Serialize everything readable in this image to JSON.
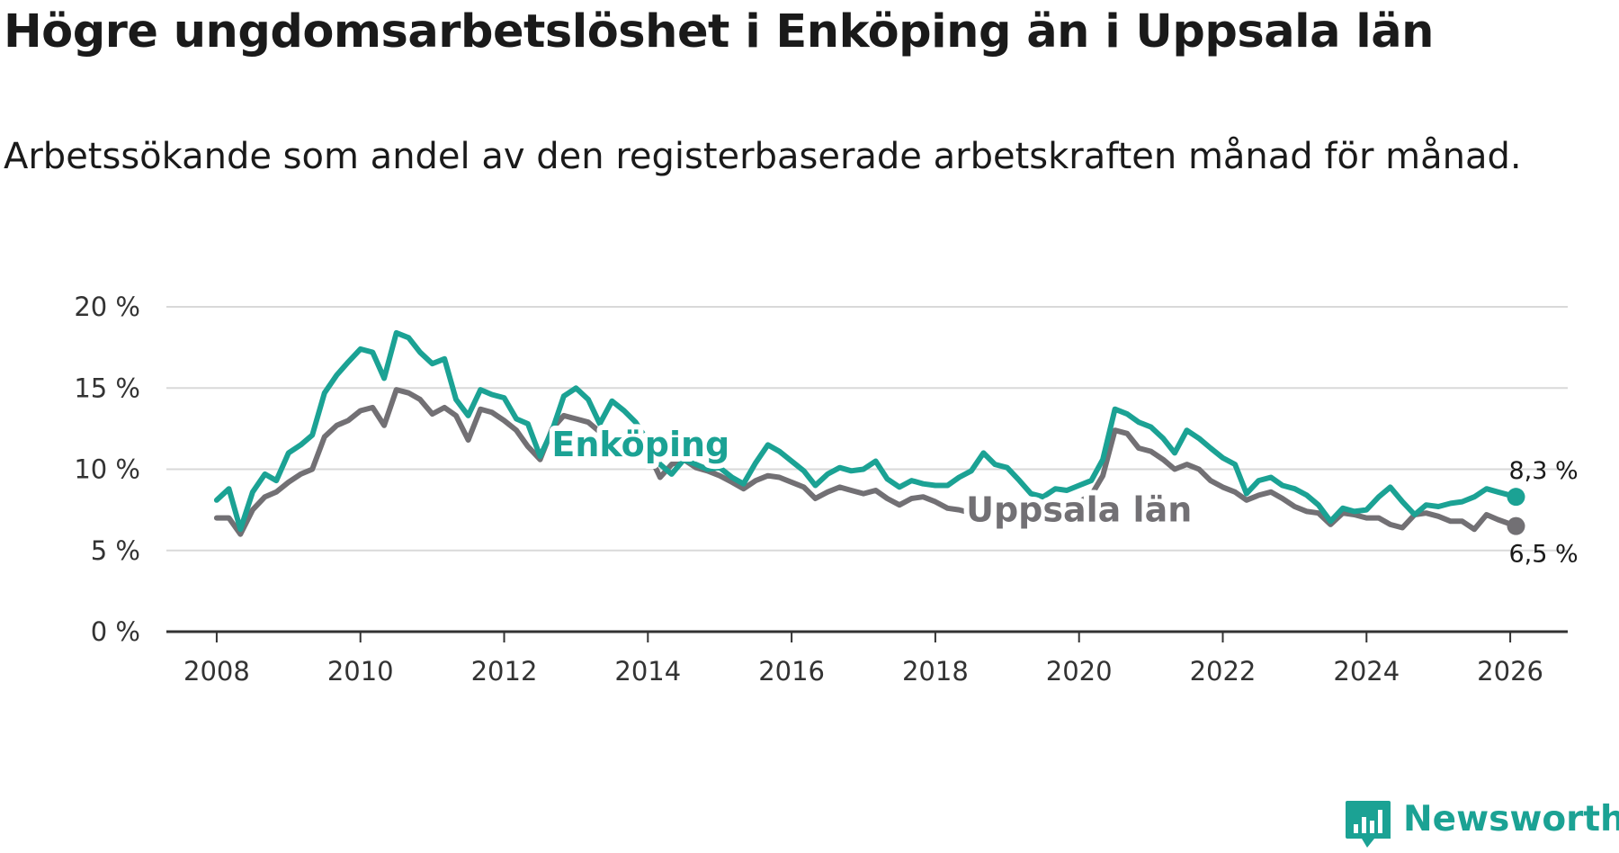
{
  "title": "Högre ungdomsarbetslöshet i Enköping än i Uppsala län",
  "subtitle": "Arbetssökande som andel av den registerbaserade arbetskraften månad för månad.",
  "brand": "Newsworthy",
  "colors": {
    "enkoping": "#1ba294",
    "uppsala": "#727074",
    "grid": "#d9d9d9",
    "axis": "#333333",
    "text": "#1a1a1a"
  },
  "chart_data": {
    "type": "line",
    "title": "Högre ungdomsarbetslöshet i Enköping än i Uppsala län",
    "xlabel": "",
    "ylabel": "",
    "xlim": [
      2007.3,
      2026.8
    ],
    "ylim": [
      0,
      20
    ],
    "grid": true,
    "legend": "inline labels",
    "y_ticks": [
      0,
      5,
      10,
      15,
      20
    ],
    "y_tick_labels": [
      "0 %",
      "5 %",
      "10 %",
      "15 %",
      "20 %"
    ],
    "x_ticks": [
      2008,
      2010,
      2012,
      2014,
      2016,
      2018,
      2020,
      2022,
      2024,
      2026
    ],
    "x_tick_labels": [
      "2008",
      "2010",
      "2012",
      "2014",
      "2016",
      "2018",
      "2020",
      "2022",
      "2024",
      "2026"
    ],
    "series": [
      {
        "name": "Enköping",
        "label": "Enköping",
        "end_label": "8,3 %",
        "points": [
          [
            2008.0,
            8.1
          ],
          [
            2008.17,
            8.8
          ],
          [
            2008.33,
            6.3
          ],
          [
            2008.5,
            8.6
          ],
          [
            2008.67,
            9.7
          ],
          [
            2008.83,
            9.3
          ],
          [
            2009.0,
            11.0
          ],
          [
            2009.17,
            11.5
          ],
          [
            2009.33,
            12.1
          ],
          [
            2009.5,
            14.7
          ],
          [
            2009.67,
            15.8
          ],
          [
            2009.83,
            16.6
          ],
          [
            2010.0,
            17.4
          ],
          [
            2010.17,
            17.2
          ],
          [
            2010.33,
            15.6
          ],
          [
            2010.5,
            18.4
          ],
          [
            2010.67,
            18.1
          ],
          [
            2010.83,
            17.2
          ],
          [
            2011.0,
            16.5
          ],
          [
            2011.17,
            16.8
          ],
          [
            2011.33,
            14.3
          ],
          [
            2011.5,
            13.3
          ],
          [
            2011.67,
            14.9
          ],
          [
            2011.83,
            14.6
          ],
          [
            2012.0,
            14.4
          ],
          [
            2012.17,
            13.1
          ],
          [
            2012.33,
            12.8
          ],
          [
            2012.5,
            10.8
          ],
          [
            2012.67,
            12.4
          ],
          [
            2012.83,
            14.5
          ],
          [
            2013.0,
            15.0
          ],
          [
            2013.17,
            14.3
          ],
          [
            2013.33,
            12.8
          ],
          [
            2013.5,
            14.2
          ],
          [
            2013.67,
            13.6
          ],
          [
            2013.83,
            12.9
          ],
          [
            2014.0,
            11.7
          ],
          [
            2014.17,
            10.3
          ],
          [
            2014.33,
            9.7
          ],
          [
            2014.5,
            10.6
          ],
          [
            2014.67,
            10.3
          ],
          [
            2014.83,
            10.0
          ],
          [
            2015.0,
            10.1
          ],
          [
            2015.17,
            9.5
          ],
          [
            2015.33,
            9.1
          ],
          [
            2015.5,
            10.4
          ],
          [
            2015.67,
            11.5
          ],
          [
            2015.83,
            11.1
          ],
          [
            2016.0,
            10.5
          ],
          [
            2016.17,
            9.9
          ],
          [
            2016.33,
            9.0
          ],
          [
            2016.5,
            9.7
          ],
          [
            2016.67,
            10.1
          ],
          [
            2016.83,
            9.9
          ],
          [
            2017.0,
            10.0
          ],
          [
            2017.17,
            10.5
          ],
          [
            2017.33,
            9.4
          ],
          [
            2017.5,
            8.9
          ],
          [
            2017.67,
            9.3
          ],
          [
            2017.83,
            9.1
          ],
          [
            2018.0,
            9.0
          ],
          [
            2018.17,
            9.0
          ],
          [
            2018.33,
            9.5
          ],
          [
            2018.5,
            9.9
          ],
          [
            2018.67,
            11.0
          ],
          [
            2018.83,
            10.3
          ],
          [
            2019.0,
            10.1
          ],
          [
            2019.17,
            9.3
          ],
          [
            2019.33,
            8.5
          ],
          [
            2019.5,
            8.3
          ],
          [
            2019.67,
            8.8
          ],
          [
            2019.83,
            8.7
          ],
          [
            2020.0,
            9.0
          ],
          [
            2020.17,
            9.3
          ],
          [
            2020.33,
            10.6
          ],
          [
            2020.5,
            13.7
          ],
          [
            2020.67,
            13.4
          ],
          [
            2020.83,
            12.9
          ],
          [
            2021.0,
            12.6
          ],
          [
            2021.17,
            11.9
          ],
          [
            2021.33,
            11.0
          ],
          [
            2021.5,
            12.4
          ],
          [
            2021.67,
            11.9
          ],
          [
            2021.83,
            11.3
          ],
          [
            2022.0,
            10.7
          ],
          [
            2022.17,
            10.3
          ],
          [
            2022.33,
            8.5
          ],
          [
            2022.5,
            9.3
          ],
          [
            2022.67,
            9.5
          ],
          [
            2022.83,
            9.0
          ],
          [
            2023.0,
            8.8
          ],
          [
            2023.17,
            8.4
          ],
          [
            2023.33,
            7.8
          ],
          [
            2023.5,
            6.8
          ],
          [
            2023.67,
            7.6
          ],
          [
            2023.83,
            7.4
          ],
          [
            2024.0,
            7.5
          ],
          [
            2024.17,
            8.3
          ],
          [
            2024.33,
            8.9
          ],
          [
            2024.5,
            8.0
          ],
          [
            2024.67,
            7.2
          ],
          [
            2024.83,
            7.8
          ],
          [
            2025.0,
            7.7
          ],
          [
            2025.17,
            7.9
          ],
          [
            2025.33,
            8.0
          ],
          [
            2025.5,
            8.3
          ],
          [
            2025.67,
            8.8
          ],
          [
            2025.83,
            8.6
          ],
          [
            2026.08,
            8.3
          ]
        ]
      },
      {
        "name": "Uppsala län",
        "label": "Uppsala län",
        "end_label": "6,5 %",
        "points": [
          [
            2008.0,
            7.0
          ],
          [
            2008.17,
            7.0
          ],
          [
            2008.33,
            6.0
          ],
          [
            2008.5,
            7.5
          ],
          [
            2008.67,
            8.3
          ],
          [
            2008.83,
            8.6
          ],
          [
            2009.0,
            9.2
          ],
          [
            2009.17,
            9.7
          ],
          [
            2009.33,
            10.0
          ],
          [
            2009.5,
            12.0
          ],
          [
            2009.67,
            12.7
          ],
          [
            2009.83,
            13.0
          ],
          [
            2010.0,
            13.6
          ],
          [
            2010.17,
            13.8
          ],
          [
            2010.33,
            12.7
          ],
          [
            2010.5,
            14.9
          ],
          [
            2010.67,
            14.7
          ],
          [
            2010.83,
            14.3
          ],
          [
            2011.0,
            13.4
          ],
          [
            2011.17,
            13.8
          ],
          [
            2011.33,
            13.3
          ],
          [
            2011.5,
            11.8
          ],
          [
            2011.67,
            13.7
          ],
          [
            2011.83,
            13.5
          ],
          [
            2012.0,
            13.0
          ],
          [
            2012.17,
            12.4
          ],
          [
            2012.33,
            11.4
          ],
          [
            2012.5,
            10.6
          ],
          [
            2012.67,
            12.5
          ],
          [
            2012.83,
            13.3
          ],
          [
            2013.0,
            13.1
          ],
          [
            2013.17,
            12.9
          ],
          [
            2013.33,
            12.3
          ],
          [
            2013.5,
            11.1
          ],
          [
            2013.67,
            12.2
          ],
          [
            2013.83,
            12.1
          ],
          [
            2014.0,
            11.1
          ],
          [
            2014.17,
            9.5
          ],
          [
            2014.33,
            10.3
          ],
          [
            2014.5,
            10.6
          ],
          [
            2014.67,
            10.1
          ],
          [
            2014.83,
            9.9
          ],
          [
            2015.0,
            9.6
          ],
          [
            2015.17,
            9.2
          ],
          [
            2015.33,
            8.8
          ],
          [
            2015.5,
            9.3
          ],
          [
            2015.67,
            9.6
          ],
          [
            2015.83,
            9.5
          ],
          [
            2016.0,
            9.2
          ],
          [
            2016.17,
            8.9
          ],
          [
            2016.33,
            8.2
          ],
          [
            2016.5,
            8.6
          ],
          [
            2016.67,
            8.9
          ],
          [
            2016.83,
            8.7
          ],
          [
            2017.0,
            8.5
          ],
          [
            2017.17,
            8.7
          ],
          [
            2017.33,
            8.2
          ],
          [
            2017.5,
            7.8
          ],
          [
            2017.67,
            8.2
          ],
          [
            2017.83,
            8.3
          ],
          [
            2018.0,
            8.0
          ],
          [
            2018.17,
            7.6
          ],
          [
            2018.33,
            7.5
          ],
          [
            2018.5,
            7.3
          ],
          [
            2018.67,
            7.9
          ],
          [
            2018.83,
            7.5
          ],
          [
            2019.0,
            7.2
          ],
          [
            2019.17,
            7.2
          ],
          [
            2019.33,
            7.3
          ],
          [
            2019.5,
            7.5
          ],
          [
            2019.67,
            7.7
          ],
          [
            2019.83,
            7.9
          ],
          [
            2020.0,
            8.0
          ],
          [
            2020.17,
            8.4
          ],
          [
            2020.33,
            9.6
          ],
          [
            2020.5,
            12.4
          ],
          [
            2020.67,
            12.2
          ],
          [
            2020.83,
            11.3
          ],
          [
            2021.0,
            11.1
          ],
          [
            2021.17,
            10.6
          ],
          [
            2021.33,
            10.0
          ],
          [
            2021.5,
            10.3
          ],
          [
            2021.67,
            10.0
          ],
          [
            2021.83,
            9.3
          ],
          [
            2022.0,
            8.9
          ],
          [
            2022.17,
            8.6
          ],
          [
            2022.33,
            8.1
          ],
          [
            2022.5,
            8.4
          ],
          [
            2022.67,
            8.6
          ],
          [
            2022.83,
            8.2
          ],
          [
            2023.0,
            7.7
          ],
          [
            2023.17,
            7.4
          ],
          [
            2023.33,
            7.3
          ],
          [
            2023.5,
            6.6
          ],
          [
            2023.67,
            7.3
          ],
          [
            2023.83,
            7.2
          ],
          [
            2024.0,
            7.0
          ],
          [
            2024.17,
            7.0
          ],
          [
            2024.33,
            6.6
          ],
          [
            2024.5,
            6.4
          ],
          [
            2024.67,
            7.2
          ],
          [
            2024.83,
            7.3
          ],
          [
            2025.0,
            7.1
          ],
          [
            2025.17,
            6.8
          ],
          [
            2025.33,
            6.8
          ],
          [
            2025.5,
            6.3
          ],
          [
            2025.67,
            7.2
          ],
          [
            2025.83,
            6.9
          ],
          [
            2026.08,
            6.5
          ]
        ]
      }
    ]
  }
}
